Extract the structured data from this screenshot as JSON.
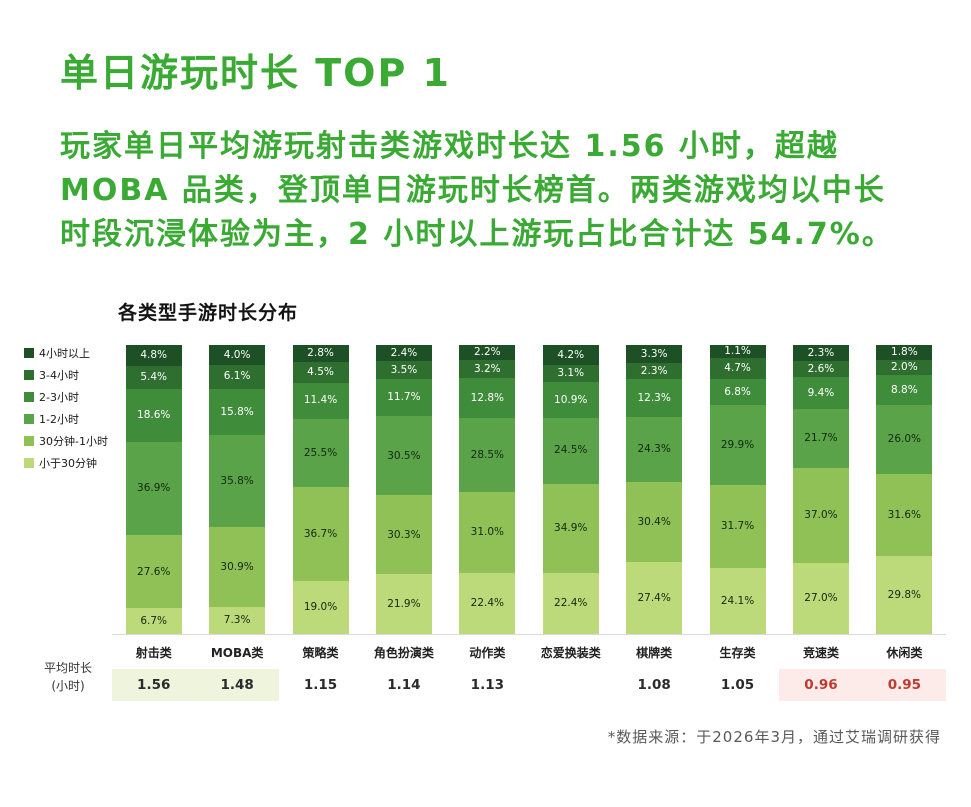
{
  "page": {
    "title": "单日游玩时长 TOP 1",
    "lede_lines": [
      "玩家单日平均游玩射击类游戏时长达 1.56 小时，超越",
      "MOBA 品类，登顶单日游玩时长榜首。两类游戏均以中长",
      "时段沉浸体验为主，2 小时以上游玩占比合计达 54.7%。"
    ],
    "footnote": "*数据来源：于2026年3月，通过艾瑞调研获得",
    "accent_color": "#3aaa35"
  },
  "chart_data": {
    "type": "bar",
    "stacked": true,
    "unit": "%",
    "title": "各类型手游时长分布",
    "legend_position": "top-left",
    "grid": false,
    "ylim": [
      0,
      100
    ],
    "categories": [
      "射击类",
      "MOBA类",
      "策略类",
      "角色扮演类",
      "动作类",
      "恋爱换装类",
      "棋牌类",
      "生存类",
      "竞速类",
      "休闲类"
    ],
    "series": [
      {
        "name": "4小时以上",
        "color": "#1d5024",
        "label_color": "#ffffff",
        "values": [
          4.8,
          4.0,
          2.8,
          2.4,
          2.2,
          4.2,
          3.3,
          1.1,
          2.3,
          1.8
        ]
      },
      {
        "name": "3-4小时",
        "color": "#2e6f30",
        "label_color": "#ffffff",
        "values": [
          5.4,
          6.1,
          4.5,
          3.5,
          3.2,
          3.1,
          2.3,
          4.7,
          2.6,
          2.0
        ]
      },
      {
        "name": "2-3小时",
        "color": "#3f8d3b",
        "label_color": "#ffffff",
        "values": [
          18.6,
          15.8,
          11.4,
          11.7,
          12.8,
          10.9,
          12.3,
          6.8,
          9.4,
          8.8
        ]
      },
      {
        "name": "1-2小时",
        "color": "#5aa348",
        "label_color": "#13290f",
        "values": [
          36.9,
          35.8,
          25.5,
          30.5,
          28.5,
          24.5,
          24.3,
          29.9,
          21.7,
          26.0
        ]
      },
      {
        "name": "30分钟-1小时",
        "color": "#8fc157",
        "label_color": "#13290f",
        "values": [
          27.6,
          30.9,
          36.7,
          30.3,
          31.0,
          34.9,
          30.4,
          31.7,
          37.0,
          31.6
        ]
      },
      {
        "name": "小于30分钟",
        "color": "#bcda79",
        "label_color": "#13290f",
        "values": [
          6.7,
          7.3,
          19.0,
          21.9,
          22.4,
          22.4,
          27.4,
          24.1,
          27.0,
          29.8
        ]
      }
    ],
    "average_row": {
      "label_line1": "平均时长",
      "label_line2": "(小时)",
      "values": [
        "1.56",
        "1.48",
        "1.15",
        "1.14",
        "1.13",
        "",
        "1.08",
        "1.05",
        "0.96",
        "0.95"
      ],
      "green_highlight_indices": [
        0,
        1
      ],
      "pink_highlight_indices": [
        8,
        9
      ],
      "green_bg": "#eef5dc",
      "pink_bg": "#fcebe9",
      "pink_text": "#bf3a30"
    }
  }
}
